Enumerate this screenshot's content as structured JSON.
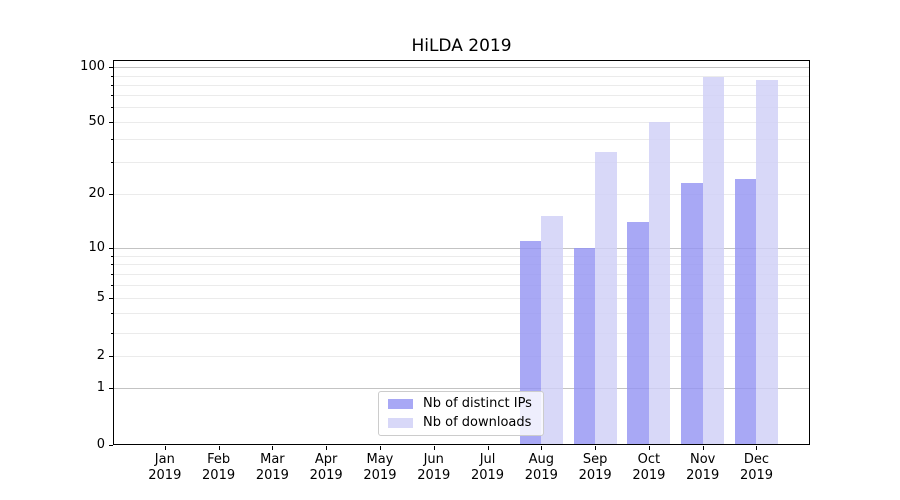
{
  "title": "HiLDA 2019",
  "legend": {
    "items": [
      {
        "label": "Nb of distinct IPs",
        "color": "#9595f3",
        "alpha": 0.82
      },
      {
        "label": "Nb of downloads",
        "color": "#cfcff6",
        "alpha": 0.82
      }
    ]
  },
  "chart_data": {
    "type": "bar",
    "title": "HiLDA 2019",
    "categories": [
      "Jan 2019",
      "Feb 2019",
      "Mar 2019",
      "Apr 2019",
      "May 2019",
      "Jun 2019",
      "Jul 2019",
      "Aug 2019",
      "Sep 2019",
      "Oct 2019",
      "Nov 2019",
      "Dec 2019"
    ],
    "series": [
      {
        "name": "Nb of distinct IPs",
        "color": "#9595f3",
        "alpha": 0.82,
        "values": [
          null,
          null,
          null,
          null,
          null,
          null,
          null,
          11,
          10,
          14,
          23,
          24
        ]
      },
      {
        "name": "Nb of downloads",
        "color": "#cfcff6",
        "alpha": 0.82,
        "values": [
          null,
          null,
          null,
          null,
          null,
          null,
          null,
          15,
          34,
          50,
          88,
          85
        ]
      }
    ],
    "yscale": "log-with-zero-baseline",
    "y_tick_labels": [
      "0",
      "1",
      "2",
      "5",
      "10",
      "20",
      "50",
      "100"
    ],
    "y_tick_values": [
      0,
      1,
      2,
      5,
      10,
      20,
      50,
      100
    ],
    "ylim": [
      0,
      100
    ],
    "grid": true,
    "legend_position": "lower center-left inside plot"
  }
}
